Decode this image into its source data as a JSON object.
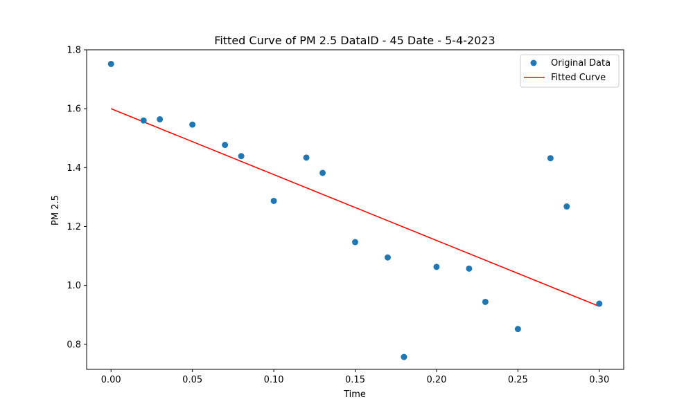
{
  "chart_data": {
    "type": "scatter",
    "title": "Fitted Curve of PM 2.5 DataID - 45 Date - 5-4-2023",
    "xlabel": "Time",
    "ylabel": "PM 2.5",
    "xlim": [
      -0.015,
      0.315
    ],
    "ylim": [
      0.715,
      1.8
    ],
    "xticks": [
      0.0,
      0.05,
      0.1,
      0.15,
      0.2,
      0.25,
      0.3
    ],
    "xtick_labels": [
      "0.00",
      "0.05",
      "0.10",
      "0.15",
      "0.20",
      "0.25",
      "0.30"
    ],
    "yticks": [
      0.8,
      1.0,
      1.2,
      1.4,
      1.6,
      1.8
    ],
    "ytick_labels": [
      "0.8",
      "1.0",
      "1.2",
      "1.4",
      "1.6",
      "1.8"
    ],
    "grid": false,
    "legend_position": "top-right",
    "series": [
      {
        "name": "Original Data",
        "kind": "scatter",
        "color": "#1f77b4",
        "x": [
          0.0,
          0.02,
          0.03,
          0.05,
          0.07,
          0.08,
          0.1,
          0.12,
          0.13,
          0.15,
          0.17,
          0.18,
          0.2,
          0.22,
          0.23,
          0.25,
          0.27,
          0.28,
          0.3
        ],
        "y": [
          1.752,
          1.56,
          1.564,
          1.546,
          1.477,
          1.439,
          1.287,
          1.434,
          1.382,
          1.147,
          1.095,
          0.757,
          1.063,
          1.057,
          0.944,
          0.852,
          1.432,
          1.268,
          0.938
        ]
      },
      {
        "name": "Fitted Curve",
        "kind": "line",
        "color": "#ff0000",
        "x": [
          0.0,
          0.3
        ],
        "y": [
          1.6,
          0.929
        ]
      }
    ]
  }
}
